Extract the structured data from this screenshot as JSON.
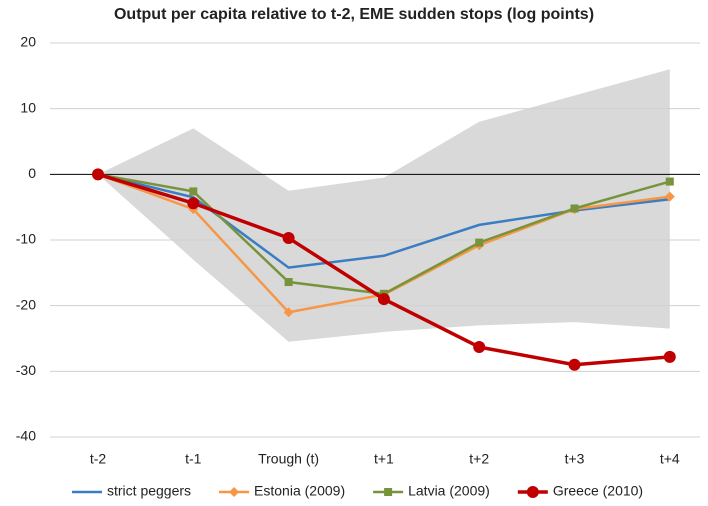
{
  "chart_data": {
    "type": "line",
    "title": "Output per capita relative to t-2, EME sudden stops (log points)",
    "categories": [
      "t-2",
      "t-1",
      "Trough (t)",
      "t+1",
      "t+2",
      "t+3",
      "t+4"
    ],
    "band": {
      "upper": [
        0,
        7,
        -2.5,
        -0.5,
        8,
        12,
        16
      ],
      "lower": [
        0,
        -13,
        -25.5,
        -24,
        -23,
        -22.5,
        -23.5
      ],
      "color": "#d9d9d9"
    },
    "series": [
      {
        "name": "strict peggers",
        "color": "#3a7dc2",
        "marker": "none",
        "values": [
          0,
          -3.5,
          -14.2,
          -12.4,
          -7.7,
          -5.5,
          -3.8
        ]
      },
      {
        "name": "Estonia (2009)",
        "color": "#f79646",
        "marker": "diamond",
        "values": [
          0,
          -5.3,
          -21,
          -18.3,
          -10.8,
          -5.3,
          -3.4
        ]
      },
      {
        "name": "Latvia (2009)",
        "color": "#77933c",
        "marker": "square",
        "values": [
          0,
          -2.6,
          -16.4,
          -18.2,
          -10.4,
          -5.2,
          -1.1
        ]
      },
      {
        "name": "Greece (2010)",
        "color": "#c00000",
        "marker": "circle",
        "values": [
          0,
          -4.4,
          -9.7,
          -19,
          -26.3,
          -29,
          -27.8
        ]
      }
    ],
    "ylim": [
      -40,
      20
    ],
    "yticks": [
      -40,
      -30,
      -20,
      -10,
      0,
      10,
      20
    ],
    "grid": true
  }
}
